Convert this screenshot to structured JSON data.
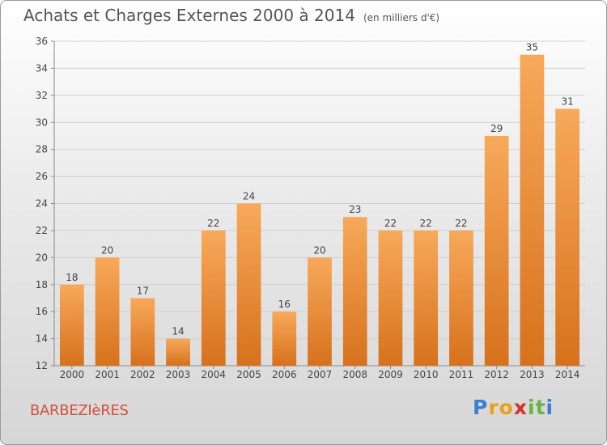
{
  "title": "Achats et Charges Externes 2000 à 2014",
  "subtitle": "(en milliers d'€)",
  "place": "BARBEZIèRES",
  "brand": {
    "letters": [
      "P",
      "r",
      "o",
      "x",
      "i",
      "t",
      "i"
    ],
    "colors": [
      "#3b7fd1",
      "#e8a21a",
      "#e8a21a",
      "#d9302a",
      "#66b347",
      "#66b347",
      "#3b7fd1"
    ]
  },
  "colors": {
    "bar_light": "#f7a95a",
    "bar_dark": "#d7711c"
  },
  "chart_data": {
    "type": "bar",
    "categories": [
      "2000",
      "2001",
      "2002",
      "2003",
      "2004",
      "2005",
      "2006",
      "2007",
      "2008",
      "2009",
      "2010",
      "2011",
      "2012",
      "2013",
      "2014"
    ],
    "values": [
      18,
      20,
      17,
      14,
      22,
      24,
      16,
      20,
      23,
      22,
      22,
      22,
      29,
      35,
      31
    ],
    "ylim": [
      12,
      36
    ],
    "yticks": [
      12,
      14,
      16,
      18,
      20,
      22,
      24,
      26,
      28,
      30,
      32,
      34,
      36
    ],
    "grid": true,
    "xlabel": "",
    "ylabel": ""
  }
}
